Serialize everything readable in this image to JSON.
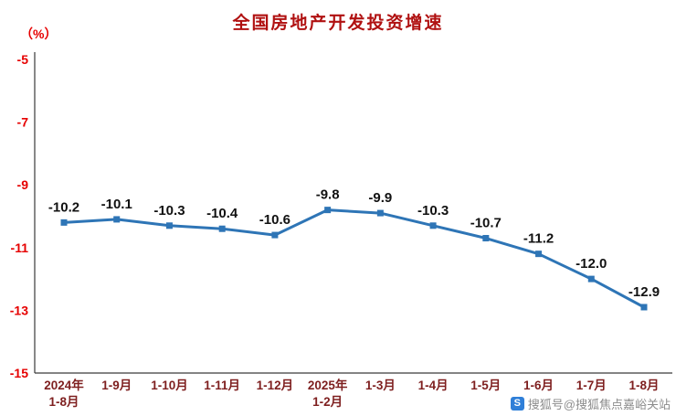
{
  "chart_data": {
    "type": "line",
    "title": "全国房地产开发投资增速",
    "ylabel": "（%）",
    "categories": [
      "2024年|1-8月",
      "1-9月",
      "1-10月",
      "1-11月",
      "1-12月",
      "2025年|1-2月",
      "1-3月",
      "1-4月",
      "1-5月",
      "1-6月",
      "1-7月",
      "1-8月"
    ],
    "values": [
      -10.2,
      -10.1,
      -10.3,
      -10.4,
      -10.6,
      -9.8,
      -9.9,
      -10.3,
      -10.7,
      -11.2,
      -12.0,
      -12.9
    ],
    "yticks": [
      -5,
      -7,
      -9,
      -11,
      -13,
      -15
    ],
    "ylim": [
      -15,
      -5
    ],
    "grid": false,
    "legend": "none",
    "line_color": "#2e75b6",
    "marker": "square",
    "axis_color": "#3a3a3a",
    "ytick_color": "#e60000",
    "xtick_color": "#7e1f1f",
    "data_label_color": "#111111"
  },
  "watermark": {
    "text": "搜狐号@搜狐焦点嘉峪关站",
    "icon": "S"
  }
}
